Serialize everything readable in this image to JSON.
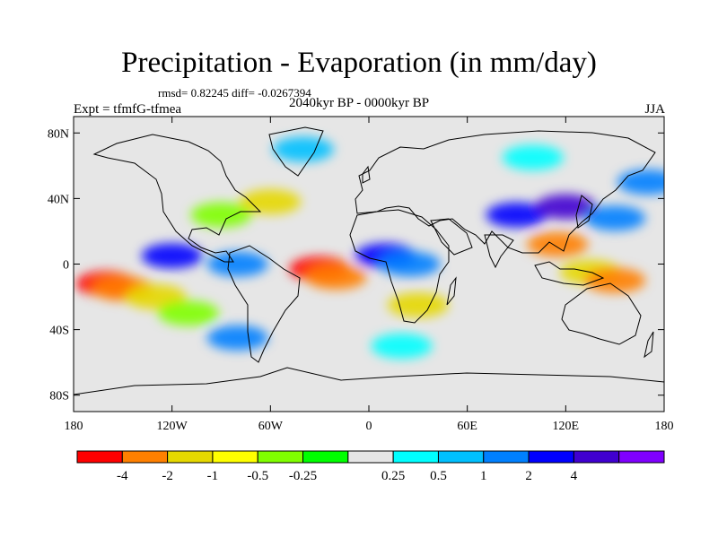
{
  "title": "Precipitation - Evaporation (in mm/day)",
  "stats": "rmsd= 0.82245 diff= -0.0267394",
  "experiment": "Expt = tfmfG-tfmea",
  "period": "2040kyr BP - 0000kyr BP",
  "season": "JJA",
  "map_data": {
    "projection": "cylindrical equidistant",
    "lon_range": [
      -180,
      180
    ],
    "lat_range": [
      -90,
      90
    ],
    "lat_ticks": [
      {
        "value": 80,
        "label": "80N"
      },
      {
        "value": 40,
        "label": "40N"
      },
      {
        "value": 0,
        "label": "0"
      },
      {
        "value": -40,
        "label": "40S"
      },
      {
        "value": -80,
        "label": "80S"
      }
    ],
    "lon_ticks": [
      {
        "value": -180,
        "label": "180"
      },
      {
        "value": -120,
        "label": "120W"
      },
      {
        "value": -60,
        "label": "60W"
      },
      {
        "value": 0,
        "label": "0"
      },
      {
        "value": 60,
        "label": "60E"
      },
      {
        "value": 120,
        "label": "120E"
      },
      {
        "value": 180,
        "label": "180"
      }
    ],
    "background_color": "#e6e6e6",
    "coastline_color": "#000000"
  },
  "colorbar": {
    "colors": [
      "#ff0000",
      "#ff8000",
      "#e6d800",
      "#ffff00",
      "#80ff00",
      "#00ff00",
      "#e6e6e6",
      "#00ffff",
      "#00c0ff",
      "#0080ff",
      "#0000ff",
      "#4000d0",
      "#8000ff"
    ],
    "labels": [
      "-4",
      "-2",
      "-1",
      "-0.5",
      "-0.25",
      "0.25",
      "0.5",
      "1",
      "2",
      "4"
    ]
  },
  "anomalies": [
    {
      "lon": -160,
      "lat": -12,
      "value": "-4",
      "color_index": 0
    },
    {
      "lon": -150,
      "lat": -15,
      "value": "-2",
      "color_index": 1
    },
    {
      "lon": -130,
      "lat": -20,
      "value": "-1",
      "color_index": 2
    },
    {
      "lon": -110,
      "lat": -30,
      "value": "-0.5",
      "color_index": 4
    },
    {
      "lon": -120,
      "lat": 5,
      "value": "2",
      "color_index": 10
    },
    {
      "lon": -80,
      "lat": 0,
      "value": "1",
      "color_index": 9
    },
    {
      "lon": -90,
      "lat": 30,
      "value": "-0.5",
      "color_index": 4
    },
    {
      "lon": -60,
      "lat": 38,
      "value": "-1",
      "color_index": 2
    },
    {
      "lon": -30,
      "lat": -3,
      "value": "-4",
      "color_index": 0
    },
    {
      "lon": -20,
      "lat": -8,
      "value": "-2",
      "color_index": 1
    },
    {
      "lon": 10,
      "lat": 5,
      "value": "2",
      "color_index": 10
    },
    {
      "lon": 25,
      "lat": 0,
      "value": "1",
      "color_index": 9
    },
    {
      "lon": 30,
      "lat": -25,
      "value": "-1",
      "color_index": 2
    },
    {
      "lon": 90,
      "lat": 30,
      "value": "2",
      "color_index": 10
    },
    {
      "lon": 120,
      "lat": 35,
      "value": "4",
      "color_index": 11
    },
    {
      "lon": 115,
      "lat": 12,
      "value": "-2",
      "color_index": 1
    },
    {
      "lon": 150,
      "lat": 28,
      "value": "1",
      "color_index": 9
    },
    {
      "lon": 135,
      "lat": -5,
      "value": "-1",
      "color_index": 2
    },
    {
      "lon": 150,
      "lat": -10,
      "value": "-2",
      "color_index": 1
    },
    {
      "lon": -40,
      "lat": 70,
      "value": "0.5",
      "color_index": 8
    },
    {
      "lon": 100,
      "lat": 65,
      "value": "0.5",
      "color_index": 7
    },
    {
      "lon": 20,
      "lat": -50,
      "value": "0.25",
      "color_index": 7
    },
    {
      "lon": -80,
      "lat": -45,
      "value": "1",
      "color_index": 9
    },
    {
      "lon": 170,
      "lat": 50,
      "value": "1",
      "color_index": 9
    }
  ]
}
